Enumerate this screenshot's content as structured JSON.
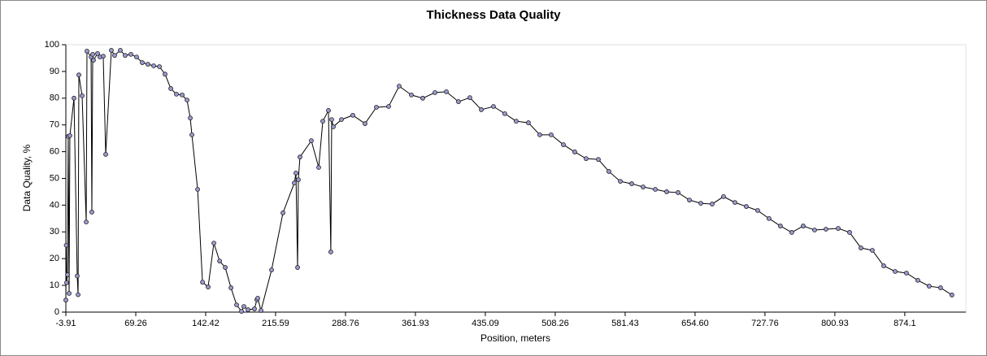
{
  "chart_data": {
    "type": "line",
    "title": "Thickness Data Quality",
    "xlabel": "Position, meters",
    "ylabel": "Data Quality, %",
    "series": [
      {
        "color": "#000000",
        "marker_color": "#9a9ad0",
        "x": [
          -3.9,
          -3.5,
          -3.1,
          -2.2,
          -1.4,
          -0.5,
          0.3,
          4.6,
          8.0,
          8.9,
          9.7,
          13.1,
          17.4,
          18.2,
          22.5,
          23.3,
          24.2,
          25.0,
          29.3,
          31.8,
          35.2,
          37.8,
          43.7,
          47.1,
          53.1,
          58.2,
          64.2,
          70.1,
          76.1,
          82.0,
          88.0,
          94.0,
          99.9,
          105.9,
          111.8,
          117.8,
          122.9,
          126.3,
          128.0,
          134.0,
          139.1,
          145.0,
          151.0,
          157.0,
          162.9,
          168.9,
          174.8,
          179.9,
          182.4,
          186.7,
          193.5,
          196.0,
          196.9,
          200.3,
          211.4,
          223.3,
          235.2,
          236.9,
          238.6,
          239.4,
          241.1,
          253.0,
          260.7,
          265.0,
          270.9,
          273.4,
          274.3,
          276.0,
          284.5,
          296.4,
          309.2,
          321.1,
          333.9,
          344.9,
          357.7,
          369.6,
          382.4,
          394.3,
          407.0,
          418.9,
          430.9,
          443.6,
          455.5,
          467.4,
          480.2,
          492.1,
          504.0,
          516.8,
          528.7,
          540.6,
          553.4,
          564.4,
          576.4,
          588.3,
          600.2,
          613.0,
          624.9,
          636.8,
          648.7,
          660.6,
          672.5,
          684.4,
          696.3,
          708.2,
          720.1,
          732.0,
          743.9,
          755.8,
          767.8,
          779.7,
          791.6,
          804.4,
          816.3,
          828.2,
          840.1,
          852.0,
          864.0,
          875.8,
          887.7,
          899.6,
          911.5,
          923.4
        ],
        "values": [
          4.5,
          25,
          11,
          14,
          65.7,
          7,
          66,
          80,
          13.5,
          6.5,
          88.7,
          80.9,
          33.7,
          97.6,
          95.4,
          37.4,
          96.4,
          94.2,
          96.7,
          95.4,
          95.7,
          59,
          97.9,
          96,
          97.9,
          96,
          96.4,
          95.4,
          93.3,
          92.7,
          92.1,
          91.8,
          89,
          83.6,
          81.5,
          81.2,
          79.3,
          72.6,
          66.3,
          45.9,
          11.2,
          9.4,
          25.8,
          19.1,
          16.7,
          9.1,
          2.7,
          0.3,
          2.1,
          0.9,
          1.2,
          4.6,
          5.2,
          0.6,
          15.8,
          37.1,
          48.3,
          52,
          16.7,
          49.5,
          58,
          64.1,
          54.1,
          71.4,
          75.4,
          22.5,
          72,
          69.3,
          72,
          73.6,
          70.5,
          76.6,
          76.9,
          84.5,
          81.2,
          80,
          82.1,
          82.4,
          78.7,
          80.2,
          75.7,
          76.9,
          74.2,
          71.4,
          70.8,
          66.3,
          66.3,
          62.6,
          59.9,
          57.4,
          57.1,
          52.6,
          48.9,
          48,
          46.8,
          45.9,
          45,
          44.7,
          41.9,
          40.7,
          40.4,
          43.2,
          41,
          39.5,
          38,
          35,
          32.2,
          29.8,
          32.2,
          30.7,
          31,
          31.3,
          29.8,
          24,
          23.1,
          17.3,
          15.2,
          14.6,
          11.9,
          9.7,
          9.1,
          6.4
        ]
      }
    ],
    "xlim": [
      -3.91,
      938
    ],
    "xticks": [
      -3.91,
      69.26,
      142.42,
      215.59,
      288.76,
      361.93,
      435.09,
      508.26,
      581.43,
      {
        "value": 654.6,
        "label": "654.60"
      },
      727.76,
      800.93,
      874.1
    ],
    "ylim": [
      0,
      100
    ],
    "yticks": [
      0,
      10,
      20,
      30,
      40,
      50,
      60,
      70,
      80,
      90,
      100
    ],
    "grid": false
  }
}
